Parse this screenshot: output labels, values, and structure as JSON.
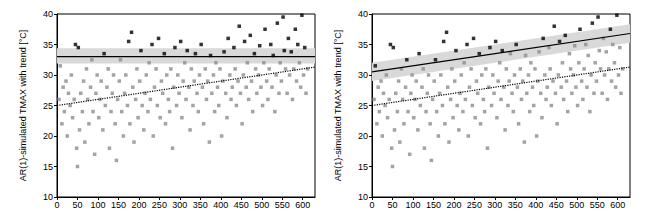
{
  "chart_data": [
    {
      "type": "scatter",
      "y_label": "AR(1)-simulated TMAX with trend [°C]",
      "xlim": [
        0,
        630
      ],
      "xticks": [
        0,
        50,
        100,
        150,
        200,
        250,
        300,
        350,
        400,
        450,
        500,
        550,
        600
      ],
      "ylim": [
        10,
        40
      ],
      "yticks": [
        10,
        15,
        20,
        25,
        30,
        35,
        40
      ],
      "grid": false,
      "series": [
        {
          "type": "band",
          "color": "#d9d9d9",
          "x": [
            0,
            630
          ],
          "lower": [
            31.9,
            31.9
          ],
          "upper": [
            34.4,
            34.4
          ]
        },
        {
          "type": "scatter",
          "color": "#8c8c8c",
          "marker": "square",
          "x": [
            5,
            8,
            12,
            15,
            18,
            22,
            25,
            28,
            32,
            35,
            38,
            42,
            48,
            50,
            55,
            58,
            62,
            65,
            68,
            72,
            75,
            78,
            82,
            85,
            88,
            92,
            95,
            98,
            102,
            105,
            108,
            112,
            118,
            122,
            125,
            128,
            132,
            135,
            138,
            142,
            145,
            148,
            152,
            155,
            158,
            162,
            165,
            168,
            172,
            178,
            185,
            188,
            192,
            195,
            198,
            202,
            208,
            212,
            215,
            218,
            222,
            225,
            228,
            235,
            238,
            242,
            245,
            252,
            255,
            258,
            265,
            268,
            272,
            275,
            278,
            282,
            285,
            292,
            295,
            298,
            305,
            308,
            312,
            315,
            322,
            325,
            328,
            332,
            335,
            342,
            345,
            348,
            355,
            358,
            362,
            365,
            368,
            372,
            378,
            382,
            385,
            388,
            392,
            395,
            398,
            402,
            405,
            412,
            415,
            422,
            425,
            428,
            435,
            438,
            442,
            448,
            452,
            455,
            462,
            465,
            468,
            475,
            478,
            485,
            488,
            492,
            498,
            502,
            505,
            512,
            515,
            518,
            525,
            532,
            535,
            542,
            545,
            548,
            558,
            562,
            568,
            575,
            578,
            585,
            592,
            595,
            602,
            608,
            612
          ],
          "values": [
            26,
            31.5,
            22,
            28,
            24,
            29,
            20,
            27,
            25,
            30,
            23,
            26,
            18,
            15,
            21,
            27,
            24,
            29,
            19,
            31,
            26,
            22,
            28,
            32.5,
            24,
            17,
            27,
            30,
            23,
            26,
            29,
            21,
            25,
            28,
            31,
            18,
            24,
            27,
            30,
            22,
            16,
            26,
            29,
            32.5,
            24,
            20,
            27,
            30,
            25,
            22,
            28,
            19,
            26,
            31,
            23,
            29,
            25,
            21,
            27,
            30,
            24,
            32,
            26,
            20,
            28,
            31,
            25,
            23,
            29,
            27,
            22,
            30,
            26,
            24,
            31,
            18,
            28,
            25,
            30,
            27,
            23,
            29,
            32,
            26,
            28,
            21,
            31,
            25,
            29,
            27,
            24,
            30,
            28,
            22,
            31,
            26,
            29,
            19,
            27,
            30,
            24,
            32,
            28,
            25,
            31,
            20,
            29,
            27,
            23,
            30,
            26,
            28,
            31,
            25,
            29,
            27,
            22,
            30,
            28,
            32,
            26,
            29,
            24,
            31,
            27,
            30,
            28,
            25,
            32,
            29,
            26,
            31,
            28,
            24,
            30,
            27,
            32,
            29,
            31,
            27,
            30,
            26,
            31,
            29,
            32,
            28,
            30,
            27,
            31
          ]
        },
        {
          "type": "scatter",
          "color": "#000000",
          "marker": "square",
          "x": [
            45,
            52,
            115,
            175,
            182,
            205,
            232,
            248,
            262,
            288,
            302,
            318,
            338,
            352,
            375,
            408,
            418,
            432,
            445,
            458,
            472,
            482,
            495,
            508,
            522,
            528,
            538,
            552,
            555,
            565,
            572,
            582,
            588,
            598,
            605
          ],
          "values": [
            35,
            34.5,
            33.5,
            35.5,
            37,
            34,
            35,
            36,
            33.5,
            34.5,
            35.5,
            34,
            33.5,
            35,
            33.2,
            33.8,
            36,
            34.5,
            38,
            35.5,
            36.5,
            33.5,
            34.8,
            37.5,
            35,
            33.2,
            38.5,
            39.5,
            34,
            36,
            33.8,
            37.5,
            35,
            39.8,
            34.5
          ]
        },
        {
          "type": "line",
          "color": "#000000",
          "line_style": "dotted",
          "x": [
            0,
            630
          ],
          "values": [
            25,
            31.3
          ]
        },
        {
          "type": "line",
          "color": "#000000",
          "line_style": "solid",
          "x": [
            0,
            630
          ],
          "values": [
            33,
            33
          ]
        }
      ]
    },
    {
      "type": "scatter",
      "y_label": "AR(1)-simulated TMAX with trend [°C]",
      "xlim": [
        0,
        630
      ],
      "xticks": [
        0,
        50,
        100,
        150,
        200,
        250,
        300,
        350,
        400,
        450,
        500,
        550,
        600
      ],
      "ylim": [
        10,
        40
      ],
      "yticks": [
        10,
        15,
        20,
        25,
        30,
        35,
        40
      ],
      "grid": false,
      "series": [
        {
          "type": "band",
          "color": "#d9d9d9",
          "x": [
            0,
            630
          ],
          "lower": [
            29,
            35.3
          ],
          "upper": [
            32,
            38.3
          ]
        },
        {
          "type": "scatter",
          "color": "#8c8c8c",
          "marker": "square",
          "x": [
            5,
            12,
            15,
            18,
            22,
            25,
            28,
            32,
            35,
            38,
            42,
            48,
            50,
            55,
            58,
            62,
            65,
            68,
            72,
            75,
            78,
            82,
            88,
            92,
            95,
            98,
            102,
            105,
            108,
            112,
            118,
            122,
            125,
            128,
            132,
            135,
            138,
            142,
            145,
            148,
            152,
            158,
            162,
            165,
            168,
            172,
            178,
            185,
            188,
            192,
            195,
            198,
            202,
            208,
            212,
            215,
            218,
            222,
            225,
            228,
            235,
            238,
            242,
            245,
            252,
            255,
            258,
            265,
            268,
            272,
            275,
            278,
            282,
            285,
            292,
            295,
            298,
            305,
            308,
            312,
            315,
            322,
            325,
            328,
            332,
            335,
            342,
            345,
            348,
            355,
            358,
            362,
            365,
            368,
            372,
            378,
            382,
            385,
            388,
            392,
            395,
            398,
            402,
            405,
            412,
            415,
            422,
            425,
            428,
            435,
            438,
            442,
            448,
            452,
            455,
            462,
            465,
            468,
            475,
            478,
            485,
            488,
            492,
            498,
            502,
            505,
            512,
            515,
            518,
            525,
            532,
            535,
            542,
            545,
            548,
            558,
            562,
            568,
            575,
            578,
            585,
            592,
            595,
            602,
            608,
            612,
            338,
            375,
            408,
            432,
            482,
            495,
            522,
            528,
            555,
            565,
            572,
            588,
            605
          ],
          "values": [
            26,
            22,
            28,
            24,
            29,
            20,
            27,
            25,
            30,
            23,
            26,
            18,
            15,
            21,
            27,
            24,
            29,
            19,
            31,
            26,
            22,
            28,
            24,
            17,
            27,
            30,
            23,
            26,
            29,
            21,
            25,
            28,
            31,
            18,
            24,
            27,
            30,
            22,
            16,
            26,
            29,
            24,
            20,
            27,
            30,
            25,
            22,
            28,
            19,
            26,
            31,
            23,
            29,
            25,
            21,
            27,
            30,
            24,
            32,
            26,
            20,
            28,
            31,
            25,
            23,
            29,
            27,
            22,
            30,
            26,
            24,
            31,
            18,
            28,
            25,
            30,
            27,
            23,
            29,
            32,
            26,
            28,
            21,
            31,
            25,
            29,
            27,
            24,
            30,
            28,
            22,
            31,
            26,
            29,
            19,
            27,
            30,
            24,
            32,
            28,
            25,
            31,
            20,
            29,
            27,
            23,
            30,
            26,
            28,
            31,
            25,
            29,
            27,
            22,
            30,
            28,
            32,
            26,
            29,
            24,
            31,
            27,
            30,
            28,
            25,
            32,
            29,
            26,
            31,
            28,
            24,
            30,
            27,
            32,
            29,
            31,
            27,
            30,
            26,
            31,
            29,
            32,
            28,
            30,
            27,
            31,
            33.5,
            33.2,
            33.8,
            34.5,
            33.5,
            34.8,
            35,
            33.2,
            34,
            36,
            33.8,
            35,
            34.5
          ]
        },
        {
          "type": "scatter",
          "color": "#000000",
          "marker": "square",
          "x": [
            8,
            45,
            52,
            85,
            115,
            155,
            175,
            182,
            205,
            232,
            248,
            262,
            288,
            302,
            318,
            352,
            418,
            445,
            458,
            472,
            508,
            538,
            552,
            582,
            598
          ],
          "values": [
            31.5,
            35,
            34.5,
            32.5,
            33.5,
            32.5,
            35.5,
            37,
            34,
            35,
            36,
            33.5,
            34.5,
            35.5,
            34,
            35,
            36,
            38,
            35.5,
            36.5,
            37.5,
            38.5,
            39.5,
            37.5,
            39.8
          ]
        },
        {
          "type": "line",
          "color": "#000000",
          "line_style": "dotted",
          "x": [
            0,
            630
          ],
          "values": [
            25,
            31.3
          ]
        },
        {
          "type": "line",
          "color": "#000000",
          "line_style": "solid",
          "x": [
            0,
            630
          ],
          "values": [
            30.5,
            36.8
          ]
        }
      ]
    }
  ]
}
